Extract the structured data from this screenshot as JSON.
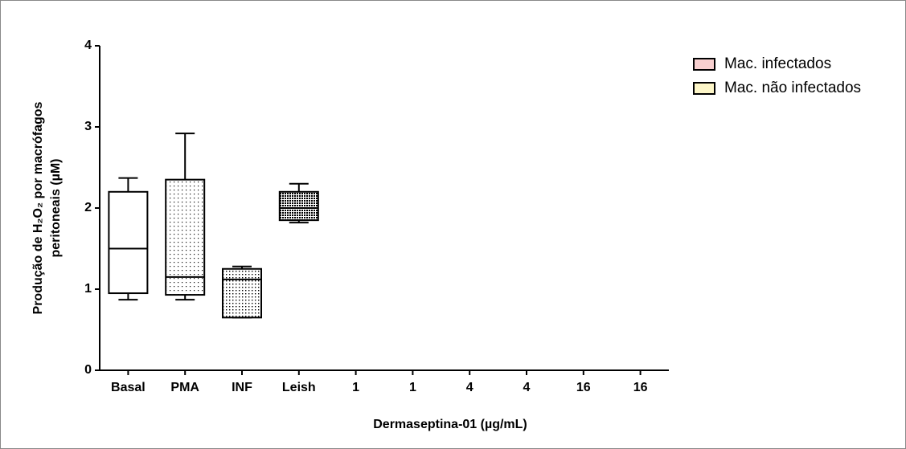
{
  "chart_data": {
    "type": "box",
    "y_label": [
      "Produção de H₂O₂ por macrófagos",
      "peritoneais (µM)"
    ],
    "x_label": "Dermaseptina-01 (µg/mL)",
    "categories": [
      "Basal",
      "PMA",
      "INF",
      "Leish",
      "1",
      "1",
      "4",
      "4",
      "16",
      "16"
    ],
    "boxes": [
      {
        "whislo": 0.87,
        "q1": 0.95,
        "med": 1.5,
        "q3": 2.2,
        "whishi": 2.37
      },
      {
        "whislo": 0.87,
        "q1": 0.93,
        "med": 1.15,
        "q3": 2.35,
        "whishi": 2.92
      },
      {
        "whislo": 0.65,
        "q1": 0.65,
        "med": 1.12,
        "q3": 1.25,
        "whishi": 1.28
      },
      {
        "whislo": 1.82,
        "q1": 1.85,
        "med": 2.0,
        "q3": 2.2,
        "whishi": 2.3
      },
      null,
      null,
      null,
      null,
      null,
      null
    ],
    "patterns": [
      "none",
      "sparse-dots",
      "dots",
      "dense",
      null,
      null,
      null,
      null,
      null,
      null
    ],
    "ylim": [
      0,
      4
    ],
    "yticks": [
      0,
      1,
      2,
      3,
      4
    ],
    "legend": [
      {
        "name": "Mac. infectados",
        "color": "#f8d0d0"
      },
      {
        "name": "Mac. não infectados",
        "color": "#fdf6c8"
      }
    ]
  }
}
